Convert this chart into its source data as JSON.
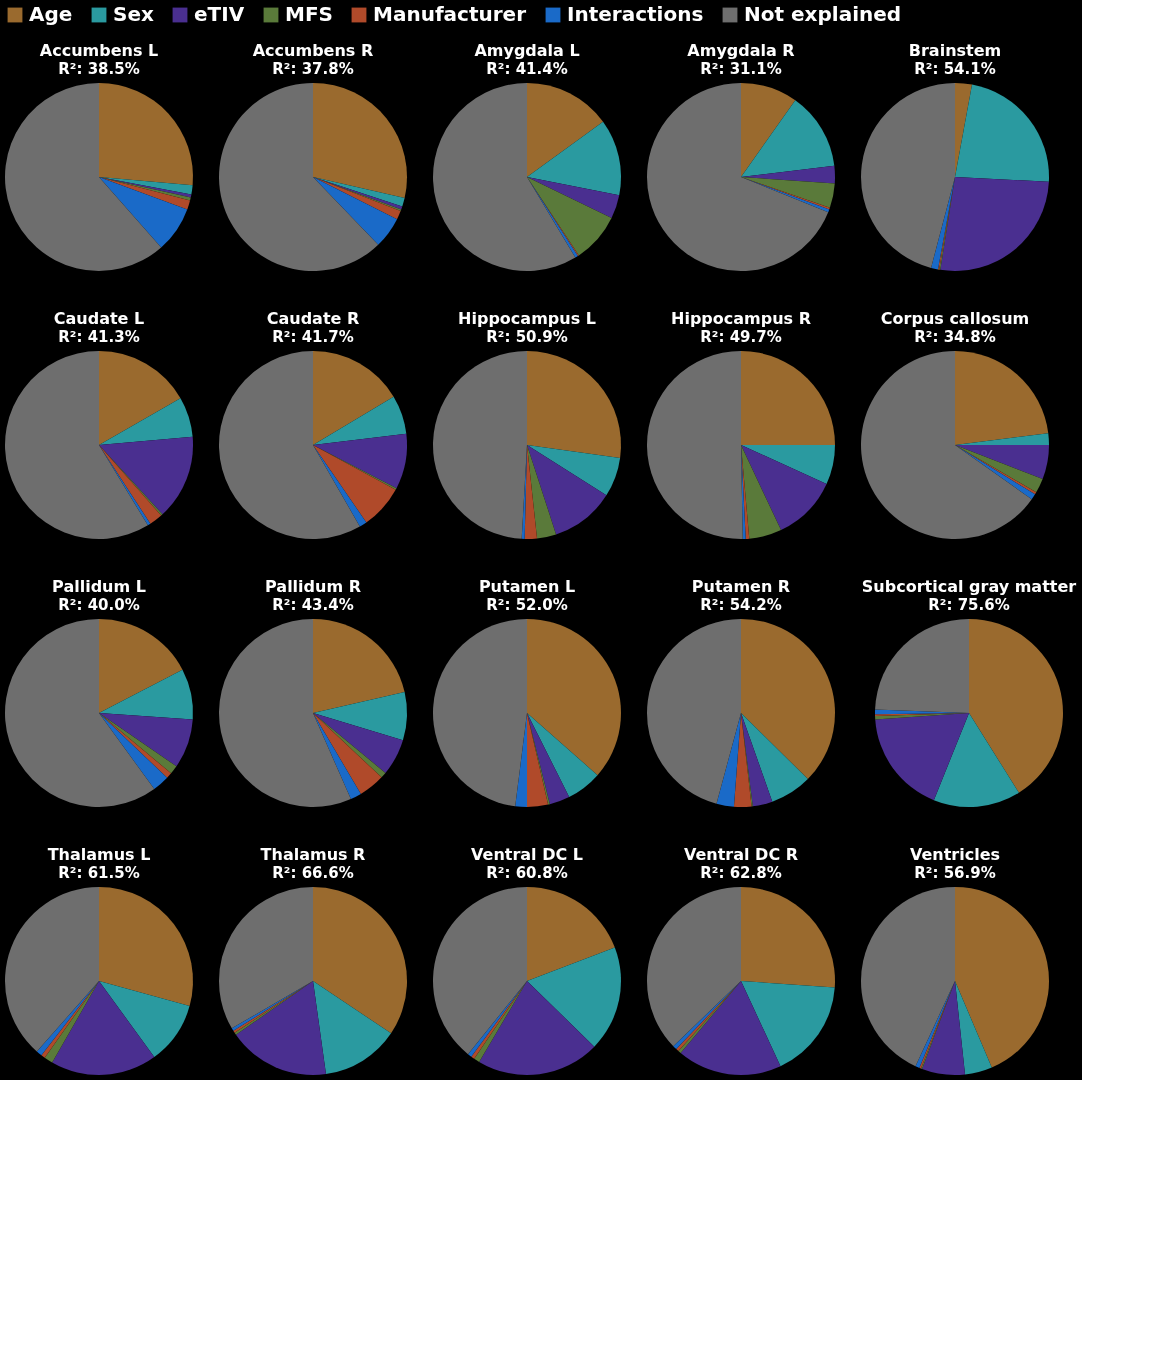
{
  "chart_data": [
    {
      "type": "pie",
      "title": "Accumbens L",
      "subtitle": "R²: 38.5%",
      "legend": "top",
      "categories": [
        "Age",
        "Sex",
        "eTIV",
        "MFS",
        "Manufacturer",
        "Interactions",
        "Not explained"
      ],
      "values": [
        26.4,
        1.6,
        0.5,
        0.5,
        1.6,
        7.9,
        61.5
      ],
      "colors": [
        "#9a6a2e",
        "#2a9aa0",
        "#4a2f90",
        "#5a7a3a",
        "#b04a2a",
        "#1a6ac8",
        "#6e6e6e"
      ]
    },
    {
      "type": "pie",
      "title": "Accumbens R",
      "subtitle": "R²: 37.8%",
      "categories": [
        null,
        null,
        null,
        null,
        null,
        null,
        null
      ],
      "values": [
        28.6,
        1.5,
        0.5,
        0.3,
        1.5,
        5.4,
        62.2
      ],
      "colors": [
        "#9a6a2e",
        "#2a9aa0",
        "#4a2f90",
        "#5a7a3a",
        "#b04a2a",
        "#1a6ac8",
        "#6e6e6e"
      ]
    },
    {
      "type": "pie",
      "title": "Amygdala L",
      "subtitle": "R²: 41.4%",
      "categories": [
        null,
        null,
        null,
        null,
        null,
        null,
        null
      ],
      "values": [
        15.0,
        13.1,
        4.1,
        8.5,
        0.2,
        0.5,
        58.6
      ],
      "colors": [
        "#9a6a2e",
        "#2a9aa0",
        "#4a2f90",
        "#5a7a3a",
        "#b04a2a",
        "#1a6ac8",
        "#6e6e6e"
      ]
    },
    {
      "type": "pie",
      "title": "Amygdala R",
      "subtitle": "R²: 31.1%",
      "categories": [
        null,
        null,
        null,
        null,
        null,
        null,
        null
      ],
      "values": [
        9.8,
        13.3,
        3.0,
        4.2,
        0.3,
        0.5,
        68.9
      ],
      "colors": [
        "#9a6a2e",
        "#2a9aa0",
        "#4a2f90",
        "#5a7a3a",
        "#b04a2a",
        "#1a6ac8",
        "#6e6e6e"
      ]
    },
    {
      "type": "pie",
      "title": "Brainstem",
      "subtitle": "R²: 54.1%",
      "categories": [
        null,
        null,
        null,
        null,
        null,
        null,
        null
      ],
      "values": [
        2.9,
        22.9,
        26.7,
        0.2,
        0.2,
        1.2,
        45.9
      ],
      "colors": [
        "#9a6a2e",
        "#2a9aa0",
        "#4a2f90",
        "#5a7a3a",
        "#b04a2a",
        "#1a6ac8",
        "#6e6e6e"
      ]
    },
    {
      "type": "pie",
      "title": "Caudate L",
      "subtitle": "R²: 41.3%",
      "categories": [
        null,
        null,
        null,
        null,
        null,
        null,
        null
      ],
      "values": [
        16.7,
        6.9,
        14.6,
        0.3,
        2.3,
        0.5,
        58.7
      ],
      "colors": [
        "#9a6a2e",
        "#2a9aa0",
        "#4a2f90",
        "#5a7a3a",
        "#b04a2a",
        "#1a6ac8",
        "#6e6e6e"
      ]
    },
    {
      "type": "pie",
      "title": "Caudate R",
      "subtitle": "R²: 41.7%",
      "categories": [
        null,
        null,
        null,
        null,
        null,
        null,
        null
      ],
      "values": [
        16.4,
        6.7,
        9.5,
        0.3,
        7.5,
        1.3,
        58.3
      ],
      "colors": [
        "#9a6a2e",
        "#2a9aa0",
        "#4a2f90",
        "#5a7a3a",
        "#b04a2a",
        "#1a6ac8",
        "#6e6e6e"
      ]
    },
    {
      "type": "pie",
      "title": "Hippocampus L",
      "subtitle": "R²: 50.9%",
      "categories": [
        null,
        null,
        null,
        null,
        null,
        null,
        null
      ],
      "values": [
        27.2,
        6.8,
        11.0,
        3.3,
        2.1,
        0.5,
        49.1
      ],
      "colors": [
        "#9a6a2e",
        "#2a9aa0",
        "#4a2f90",
        "#5a7a3a",
        "#b04a2a",
        "#1a6ac8",
        "#6e6e6e"
      ]
    },
    {
      "type": "pie",
      "title": "Hippocampus R",
      "subtitle": "R²: 49.7%",
      "categories": [
        null,
        null,
        null,
        null,
        null,
        null,
        null
      ],
      "values": [
        25.0,
        6.8,
        11.2,
        5.6,
        0.6,
        0.5,
        50.3
      ],
      "colors": [
        "#9a6a2e",
        "#2a9aa0",
        "#4a2f90",
        "#5a7a3a",
        "#b04a2a",
        "#1a6ac8",
        "#6e6e6e"
      ]
    },
    {
      "type": "pie",
      "title": "Corpus callosum",
      "subtitle": "R²: 34.8%",
      "categories": [
        null,
        null,
        null,
        null,
        null,
        null,
        null
      ],
      "values": [
        23.0,
        2.0,
        5.9,
        2.5,
        0.4,
        1.0,
        65.2
      ],
      "colors": [
        "#9a6a2e",
        "#2a9aa0",
        "#4a2f90",
        "#5a7a3a",
        "#b04a2a",
        "#1a6ac8",
        "#6e6e6e"
      ]
    },
    {
      "type": "pie",
      "title": "Pallidum L",
      "subtitle": "R²: 40.0%",
      "categories": [
        null,
        null,
        null,
        null,
        null,
        null,
        null
      ],
      "values": [
        17.4,
        8.7,
        8.5,
        1.5,
        1.0,
        2.9,
        60.0
      ],
      "colors": [
        "#9a6a2e",
        "#2a9aa0",
        "#4a2f90",
        "#5a7a3a",
        "#b04a2a",
        "#1a6ac8",
        "#6e6e6e"
      ]
    },
    {
      "type": "pie",
      "title": "Pallidum R",
      "subtitle": "R²: 43.4%",
      "categories": [
        null,
        null,
        null,
        null,
        null,
        null,
        null
      ],
      "values": [
        21.4,
        8.3,
        6.3,
        1.0,
        4.5,
        1.9,
        56.6
      ],
      "colors": [
        "#9a6a2e",
        "#2a9aa0",
        "#4a2f90",
        "#5a7a3a",
        "#b04a2a",
        "#1a6ac8",
        "#6e6e6e"
      ]
    },
    {
      "type": "pie",
      "title": "Putamen L",
      "subtitle": "R²: 52.0%",
      "categories": [
        null,
        null,
        null,
        null,
        null,
        null,
        null
      ],
      "values": [
        36.5,
        6.1,
        3.5,
        0.3,
        3.6,
        2.0,
        48.0
      ],
      "colors": [
        "#9a6a2e",
        "#2a9aa0",
        "#4a2f90",
        "#5a7a3a",
        "#b04a2a",
        "#1a6ac8",
        "#6e6e6e"
      ]
    },
    {
      "type": "pie",
      "title": "Putamen R",
      "subtitle": "R²: 54.2%",
      "categories": [
        null,
        null,
        null,
        null,
        null,
        null,
        null
      ],
      "values": [
        37.4,
        7.2,
        3.4,
        0.2,
        3.0,
        3.0,
        45.8
      ],
      "colors": [
        "#9a6a2e",
        "#2a9aa0",
        "#4a2f90",
        "#5a7a3a",
        "#b04a2a",
        "#1a6ac8",
        "#6e6e6e"
      ]
    },
    {
      "type": "pie",
      "title": "Subcortical gray matter",
      "subtitle": "R²: 75.6%",
      "categories": [
        null,
        null,
        null,
        null,
        null,
        null,
        null
      ],
      "values": [
        41.1,
        15.0,
        17.8,
        0.6,
        0.3,
        0.8,
        24.4
      ],
      "colors": [
        "#9a6a2e",
        "#2a9aa0",
        "#4a2f90",
        "#5a7a3a",
        "#b04a2a",
        "#1a6ac8",
        "#6e6e6e"
      ]
    },
    {
      "type": "pie",
      "title": "Thalamus L",
      "subtitle": "R²: 61.5%",
      "categories": [
        null,
        null,
        null,
        null,
        null,
        null,
        null
      ],
      "values": [
        29.3,
        10.7,
        18.3,
        1.5,
        0.7,
        1.0,
        38.5
      ],
      "colors": [
        "#9a6a2e",
        "#2a9aa0",
        "#4a2f90",
        "#5a7a3a",
        "#b04a2a",
        "#1a6ac8",
        "#6e6e6e"
      ]
    },
    {
      "type": "pie",
      "title": "Thalamus R",
      "subtitle": "R²: 66.6%",
      "categories": [
        null,
        null,
        null,
        null,
        null,
        null,
        null
      ],
      "values": [
        34.4,
        13.4,
        17.5,
        0.4,
        0.4,
        0.5,
        33.4
      ],
      "colors": [
        "#9a6a2e",
        "#2a9aa0",
        "#4a2f90",
        "#5a7a3a",
        "#b04a2a",
        "#1a6ac8",
        "#6e6e6e"
      ]
    },
    {
      "type": "pie",
      "title": "Ventral DC L",
      "subtitle": "R²: 60.8%",
      "categories": [
        null,
        null,
        null,
        null,
        null,
        null,
        null
      ],
      "values": [
        19.2,
        18.1,
        21.2,
        1.0,
        0.6,
        0.7,
        39.2
      ],
      "colors": [
        "#9a6a2e",
        "#2a9aa0",
        "#4a2f90",
        "#5a7a3a",
        "#b04a2a",
        "#1a6ac8",
        "#6e6e6e"
      ]
    },
    {
      "type": "pie",
      "title": "Ventral DC R",
      "subtitle": "R²: 62.8%",
      "categories": [
        null,
        null,
        null,
        null,
        null,
        null,
        null
      ],
      "values": [
        26.1,
        17.0,
        18.0,
        0.5,
        0.5,
        0.7,
        37.2
      ],
      "colors": [
        "#9a6a2e",
        "#2a9aa0",
        "#4a2f90",
        "#5a7a3a",
        "#b04a2a",
        "#1a6ac8",
        "#6e6e6e"
      ]
    },
    {
      "type": "pie",
      "title": "Ventricles",
      "subtitle": "R²: 56.9%",
      "categories": [
        null,
        null,
        null,
        null,
        null,
        null,
        null
      ],
      "values": [
        43.6,
        4.7,
        7.4,
        0.2,
        0.3,
        0.7,
        43.1
      ],
      "colors": [
        "#9a6a2e",
        "#2a9aa0",
        "#4a2f90",
        "#5a7a3a",
        "#b04a2a",
        "#1a6ac8",
        "#6e6e6e"
      ]
    }
  ]
}
